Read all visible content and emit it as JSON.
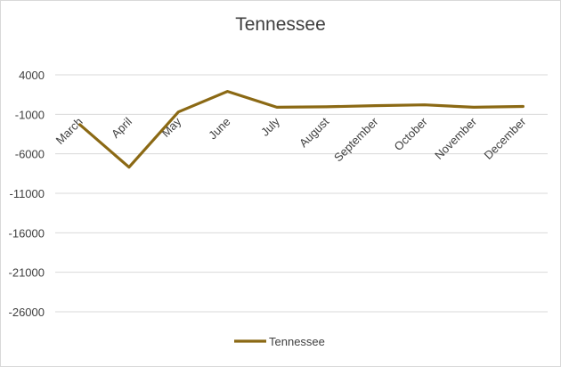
{
  "chart_data": {
    "type": "line",
    "title": "Tennessee",
    "xlabel": "",
    "ylabel": "",
    "categories": [
      "March",
      "April",
      "May",
      "June",
      "July",
      "August",
      "September",
      "October",
      "November",
      "December"
    ],
    "series": [
      {
        "name": "Tennessee",
        "color": "#8B6914",
        "values": [
          -2300,
          -7700,
          -700,
          1900,
          -100,
          -50,
          100,
          200,
          -100,
          0
        ]
      }
    ],
    "y_ticks": [
      "4000",
      "-1000",
      "-6000",
      "-11000",
      "-16000",
      "-21000",
      "-26000"
    ],
    "y_tick_values": [
      4000,
      -1000,
      -6000,
      -11000,
      -16000,
      -21000,
      -26000
    ],
    "ylim": [
      -26000,
      4000
    ],
    "grid": true,
    "legend": "bottom"
  }
}
